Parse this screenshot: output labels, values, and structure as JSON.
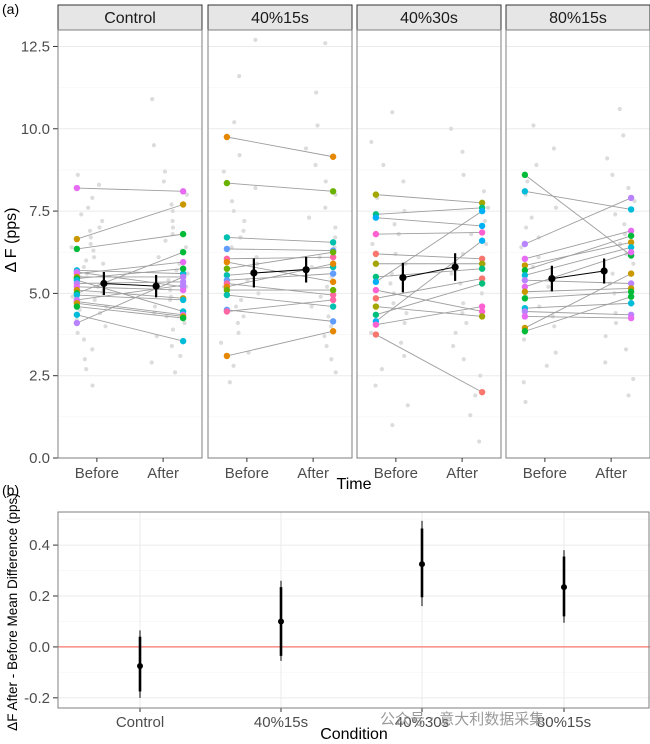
{
  "figure": {
    "panel_a_label": "(a)",
    "panel_b_label": "(b)",
    "watermark": "公众号 · 意大利数据采集"
  },
  "colors": {
    "grid": "#ebebeb",
    "border": "#7f7f7f",
    "strip_bg": "#e6e6e6",
    "strip_border": "#333333",
    "background_points": "#dcdcdc",
    "line": "#9e9e9e",
    "mean": "#000000",
    "reference_line": "#f8766d",
    "palette": [
      "#e76bf3",
      "#f8766d",
      "#e58700",
      "#c99800",
      "#a3a500",
      "#6bb100",
      "#00ba38",
      "#00bf7d",
      "#00c0af",
      "#00bcd8",
      "#00b0f6",
      "#619cff",
      "#b983ff",
      "#fd61d1",
      "#ff67a4"
    ]
  },
  "chart_data": [
    {
      "type": "scatter",
      "panel": "a",
      "ylabel": "Δ F (pps)",
      "xlabel": "Time",
      "ylim": [
        0,
        13
      ],
      "yticks": [
        "0.0",
        "2.5",
        "5.0",
        "7.5",
        "10.0",
        "12.5"
      ],
      "ytick_values": [
        0,
        2.5,
        5,
        7.5,
        10,
        12.5
      ],
      "categories": [
        "Before",
        "After"
      ],
      "facets": [
        {
          "name": "Control",
          "pairs": [
            [
              8.2,
              8.1
            ],
            [
              6.65,
              7.7
            ],
            [
              6.35,
              6.8
            ],
            [
              5.7,
              5.6
            ],
            [
              5.65,
              5.2
            ],
            [
              5.6,
              5.95
            ],
            [
              5.5,
              5.5
            ],
            [
              5.45,
              5.75
            ],
            [
              5.4,
              4.45
            ],
            [
              5.3,
              5.35
            ],
            [
              5.2,
              5.1
            ],
            [
              5.1,
              4.85
            ],
            [
              5.0,
              6.25
            ],
            [
              4.95,
              4.8
            ],
            [
              4.8,
              5.25
            ],
            [
              4.75,
              4.35
            ],
            [
              4.7,
              4.3
            ],
            [
              4.6,
              4.25
            ],
            [
              4.35,
              3.55
            ],
            [
              4.1,
              5.5
            ]
          ],
          "mean_before": 5.3,
          "ci_before": [
            4.95,
            5.65
          ],
          "mean_after": 5.22,
          "ci_after": [
            4.88,
            5.56
          ],
          "bg_before": [
            8.6,
            8.3,
            7.9,
            7.6,
            7.4,
            7.2,
            7.0,
            6.9,
            6.7,
            6.5,
            6.4,
            6.3,
            6.1,
            6.0,
            5.9,
            5.8,
            5.6,
            5.5,
            5.3,
            5.2,
            5.1,
            5.0,
            4.9,
            4.8,
            4.6,
            4.5,
            4.4,
            4.2,
            4.0,
            3.8,
            3.6,
            3.3,
            3.0,
            2.7,
            2.2
          ],
          "bg_after": [
            10.9,
            9.5,
            8.7,
            8.4,
            8.0,
            7.7,
            7.5,
            7.2,
            7.0,
            6.8,
            6.6,
            6.4,
            6.3,
            6.1,
            5.9,
            5.7,
            5.6,
            5.4,
            5.2,
            5.1,
            4.9,
            4.8,
            4.6,
            4.4,
            4.3,
            4.1,
            3.9,
            3.7,
            3.4,
            3.1,
            2.9,
            2.6
          ]
        },
        {
          "name": "40%15s",
          "pairs": [
            [
              9.75,
              9.15
            ],
            [
              8.35,
              8.1
            ],
            [
              6.7,
              6.55
            ],
            [
              6.35,
              6.3
            ],
            [
              6.05,
              6.1
            ],
            [
              5.95,
              5.35
            ],
            [
              5.75,
              6.25
            ],
            [
              5.55,
              5.8
            ],
            [
              5.4,
              5.6
            ],
            [
              5.3,
              4.95
            ],
            [
              5.2,
              5.9
            ],
            [
              5.1,
              5.1
            ],
            [
              4.95,
              4.6
            ],
            [
              4.5,
              4.15
            ],
            [
              4.45,
              4.8
            ],
            [
              3.1,
              3.85
            ]
          ],
          "mean_before": 5.62,
          "ci_before": [
            5.18,
            6.06
          ],
          "mean_after": 5.72,
          "ci_after": [
            5.33,
            6.11
          ],
          "bg_before": [
            12.7,
            11.6,
            10.2,
            9.2,
            8.7,
            8.2,
            7.8,
            7.5,
            7.2,
            6.9,
            6.7,
            6.4,
            6.1,
            5.9,
            5.6,
            5.4,
            5.2,
            5.0,
            4.8,
            4.6,
            4.3,
            4.1,
            3.8,
            3.5,
            3.2,
            2.8,
            2.3
          ],
          "bg_after": [
            12.6,
            11.1,
            10.1,
            9.4,
            8.9,
            8.4,
            8.0,
            7.6,
            7.3,
            7.0,
            6.7,
            6.4,
            6.1,
            5.8,
            5.5,
            5.2,
            4.9,
            4.6,
            4.3,
            4.0,
            3.7,
            3.4,
            3.0,
            2.6
          ]
        },
        {
          "name": "40%30s",
          "pairs": [
            [
              8.0,
              7.75
            ],
            [
              7.4,
              7.6
            ],
            [
              7.3,
              7.05
            ],
            [
              6.8,
              6.85
            ],
            [
              6.2,
              6.05
            ],
            [
              5.9,
              5.9
            ],
            [
              5.5,
              5.75
            ],
            [
              5.35,
              7.5
            ],
            [
              5.1,
              4.45
            ],
            [
              4.85,
              5.45
            ],
            [
              4.6,
              4.3
            ],
            [
              4.35,
              5.3
            ],
            [
              4.15,
              6.6
            ],
            [
              4.05,
              4.6
            ],
            [
              3.75,
              2.0
            ]
          ],
          "mean_before": 5.48,
          "ci_before": [
            5.03,
            5.93
          ],
          "mean_after": 5.8,
          "ci_after": [
            5.38,
            6.22
          ],
          "bg_before": [
            10.5,
            9.6,
            8.9,
            8.4,
            7.9,
            7.5,
            7.1,
            6.8,
            6.5,
            6.2,
            5.9,
            5.6,
            5.3,
            5.0,
            4.7,
            4.4,
            4.1,
            3.8,
            3.5,
            3.1,
            2.7,
            2.2,
            1.6,
            1.0
          ],
          "bg_after": [
            10.0,
            9.3,
            8.6,
            8.1,
            7.6,
            7.2,
            6.8,
            6.5,
            6.2,
            5.9,
            5.6,
            5.3,
            5.0,
            4.7,
            4.4,
            4.1,
            3.8,
            3.4,
            3.0,
            2.5,
            1.9,
            1.3,
            0.5
          ]
        },
        {
          "name": "80%15s",
          "pairs": [
            [
              8.6,
              6.15
            ],
            [
              8.1,
              7.55
            ],
            [
              6.5,
              7.9
            ],
            [
              6.05,
              6.9
            ],
            [
              5.85,
              6.55
            ],
            [
              5.7,
              6.75
            ],
            [
              5.55,
              6.4
            ],
            [
              5.4,
              5.3
            ],
            [
              5.2,
              6.25
            ],
            [
              5.05,
              5.15
            ],
            [
              4.85,
              5.05
            ],
            [
              4.55,
              4.7
            ],
            [
              4.45,
              4.35
            ],
            [
              4.3,
              4.25
            ],
            [
              3.95,
              5.6
            ],
            [
              3.85,
              4.9
            ]
          ],
          "mean_before": 5.45,
          "ci_before": [
            5.06,
            5.84
          ],
          "mean_after": 5.68,
          "ci_after": [
            5.3,
            6.06
          ],
          "bg_before": [
            10.1,
            9.4,
            8.9,
            8.4,
            8.0,
            7.6,
            7.3,
            7.0,
            6.7,
            6.4,
            6.1,
            5.8,
            5.5,
            5.2,
            4.9,
            4.6,
            4.3,
            4.0,
            3.6,
            3.2,
            2.8,
            2.3,
            1.7
          ],
          "bg_after": [
            10.6,
            9.8,
            9.1,
            8.6,
            8.2,
            7.8,
            7.4,
            7.1,
            6.8,
            6.5,
            6.2,
            5.9,
            5.6,
            5.3,
            5.0,
            4.7,
            4.4,
            4.1,
            3.7,
            3.3,
            2.9,
            2.4,
            1.9
          ]
        }
      ]
    },
    {
      "type": "errorbar",
      "panel": "b",
      "ylabel": "ΔF After - Before Mean Difference (pps)",
      "xlabel": "Condition",
      "ylim": [
        -0.24,
        0.53
      ],
      "yticks": [
        "-0.2",
        "0.0",
        "0.2",
        "0.4"
      ],
      "ytick_values": [
        -0.2,
        0,
        0.2,
        0.4
      ],
      "reference_value": 0,
      "categories": [
        "Control",
        "40%15s",
        "40%30s",
        "80%15s"
      ],
      "means": [
        -0.075,
        0.1,
        0.325,
        0.235
      ],
      "inner_ci": [
        [
          -0.175,
          0.04
        ],
        [
          -0.035,
          0.235
        ],
        [
          0.195,
          0.465
        ],
        [
          0.12,
          0.355
        ]
      ],
      "outer_ci": [
        [
          -0.2,
          0.065
        ],
        [
          -0.055,
          0.26
        ],
        [
          0.16,
          0.495
        ],
        [
          0.095,
          0.38
        ]
      ]
    }
  ]
}
